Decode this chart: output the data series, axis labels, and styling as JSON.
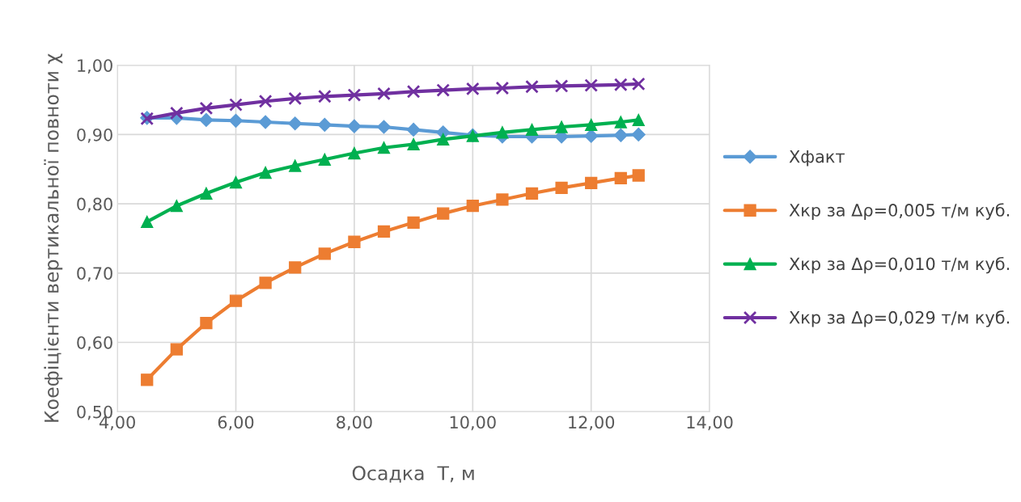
{
  "chart_data": {
    "type": "line",
    "xlabel": "Осадка  T, м",
    "ylabel": "Коефіцієнти вертикальної повноти χ",
    "x": [
      4.5,
      5,
      5.5,
      6,
      6.5,
      7,
      7.5,
      8,
      8.5,
      9,
      9.5,
      10,
      10.5,
      11,
      11.5,
      12,
      12.5,
      12.8
    ],
    "series": [
      {
        "name": "Xфакт",
        "color": "#5b9bd5",
        "marker": "diamond",
        "values": [
          0.924,
          0.924,
          0.921,
          0.92,
          0.918,
          0.916,
          0.914,
          0.912,
          0.911,
          0.907,
          0.903,
          0.899,
          0.897,
          0.897,
          0.897,
          0.898,
          0.899,
          0.9
        ]
      },
      {
        "name": "Xкр за Δρ=0,005 т/м куб.",
        "color": "#ed7d31",
        "marker": "square",
        "values": [
          0.546,
          0.59,
          0.628,
          0.66,
          0.686,
          0.708,
          0.728,
          0.745,
          0.76,
          0.773,
          0.786,
          0.797,
          0.806,
          0.815,
          0.823,
          0.83,
          0.837,
          0.841
        ]
      },
      {
        "name": "Xкр за Δρ=0,010 т/м куб.",
        "color": "#00b050",
        "marker": "triangle",
        "values": [
          0.774,
          0.797,
          0.815,
          0.831,
          0.845,
          0.855,
          0.864,
          0.873,
          0.881,
          0.886,
          0.893,
          0.898,
          0.903,
          0.907,
          0.911,
          0.914,
          0.918,
          0.921
        ]
      },
      {
        "name": "Xкр за Δρ=0,029 т/м куб.",
        "color": "#7030a0",
        "marker": "cross",
        "values": [
          0.923,
          0.931,
          0.938,
          0.943,
          0.948,
          0.952,
          0.955,
          0.957,
          0.959,
          0.962,
          0.964,
          0.966,
          0.967,
          0.969,
          0.97,
          0.971,
          0.972,
          0.973
        ]
      }
    ],
    "xlim": [
      4,
      14
    ],
    "xticks": [
      {
        "value": 4,
        "label": "4,00"
      },
      {
        "value": 6,
        "label": "6,00"
      },
      {
        "value": 8,
        "label": "8,00"
      },
      {
        "value": 10,
        "label": "10,00"
      },
      {
        "value": 12,
        "label": "12,00"
      },
      {
        "value": 14,
        "label": "14,00"
      }
    ],
    "ylim": [
      0.5,
      1.0
    ],
    "yticks": [
      {
        "value": 0.5,
        "label": "0,50"
      },
      {
        "value": 0.6,
        "label": "0,60"
      },
      {
        "value": 0.7,
        "label": "0,70"
      },
      {
        "value": 0.8,
        "label": "0,80"
      },
      {
        "value": 0.9,
        "label": "0,90"
      },
      {
        "value": 1.0,
        "label": "1,00"
      }
    ],
    "grid": true,
    "legend": "right",
    "line_style": "solid"
  }
}
